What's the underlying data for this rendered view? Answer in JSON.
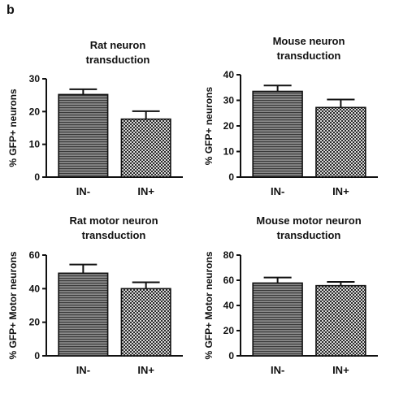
{
  "panel_label": "b",
  "chart_data": [
    {
      "type": "bar",
      "title_lines": [
        "Rat neuron",
        "transduction"
      ],
      "ylabel": "% GFP+ neurons",
      "categories": [
        "IN-",
        "IN+"
      ],
      "values": [
        25.2,
        17.7
      ],
      "errors": [
        1.6,
        2.4
      ],
      "ylim": [
        0,
        30
      ],
      "yticks": [
        0,
        10,
        20,
        30
      ],
      "grid": false
    },
    {
      "type": "bar",
      "title_lines": [
        "Mouse neuron",
        "transduction"
      ],
      "ylabel": "% GFP+ neurons",
      "categories": [
        "IN-",
        "IN+"
      ],
      "values": [
        33.5,
        27.2
      ],
      "errors": [
        2.3,
        3.1
      ],
      "ylim": [
        0,
        40
      ],
      "yticks": [
        0,
        10,
        20,
        30,
        40
      ],
      "grid": false
    },
    {
      "type": "bar",
      "title_lines": [
        "Rat motor neuron",
        "transduction"
      ],
      "ylabel": "% GFP+ Motor neurons",
      "categories": [
        "IN-",
        "IN+"
      ],
      "values": [
        49.2,
        40.0
      ],
      "errors": [
        5.2,
        3.8
      ],
      "ylim": [
        0,
        60
      ],
      "yticks": [
        0,
        20,
        40,
        60
      ],
      "grid": false
    },
    {
      "type": "bar",
      "title_lines": [
        "Mouse motor neuron",
        "transduction"
      ],
      "ylabel": "% GFP+ Motor neurons",
      "categories": [
        "IN-",
        "IN+"
      ],
      "values": [
        57.8,
        55.7
      ],
      "errors": [
        4.4,
        3.0
      ],
      "ylim": [
        0,
        80
      ],
      "yticks": [
        0,
        20,
        40,
        60,
        80
      ],
      "grid": false
    }
  ]
}
